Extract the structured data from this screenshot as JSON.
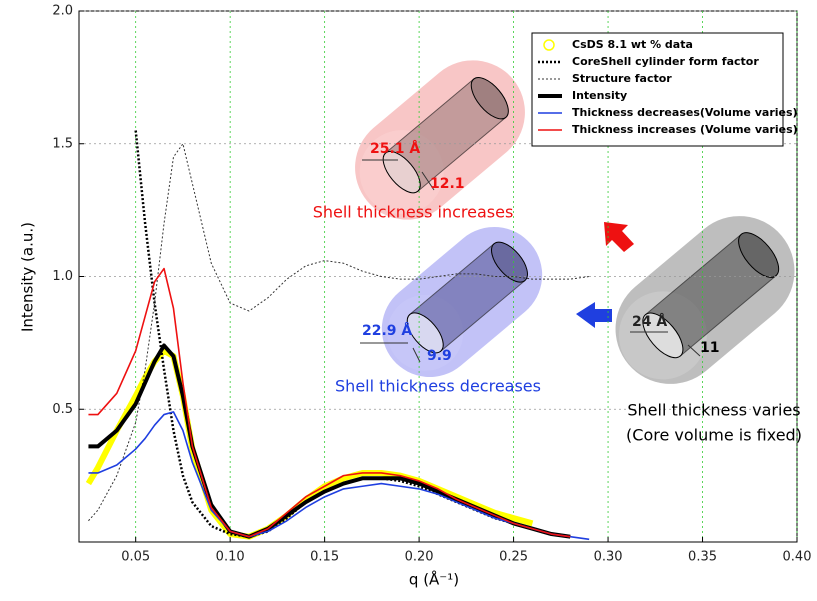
{
  "chart_data": {
    "type": "line",
    "x_label": "q (Å⁻¹)",
    "y_label": "Intensity (a.u.)",
    "xlim": [
      0.02,
      0.4
    ],
    "ylim": [
      0,
      2.0
    ],
    "xticks": [
      0.05,
      {
        "value": 0.1,
        "label": "0.10"
      },
      0.15,
      {
        "value": 0.2,
        "label": "0.20"
      },
      0.25,
      {
        "value": 0.3,
        "label": "0.30"
      },
      0.35,
      {
        "value": 0.4,
        "label": "0.40"
      }
    ],
    "yticks": [
      0.5,
      {
        "value": 1,
        "label": "1.0"
      },
      1.5,
      {
        "value": 2,
        "label": "2.0"
      }
    ],
    "grid": true,
    "legend": "top-right",
    "x": [
      0.025,
      0.03,
      0.04,
      0.05,
      0.055,
      0.06,
      0.065,
      0.07,
      0.075,
      0.08,
      0.09,
      0.1,
      0.11,
      0.12,
      0.13,
      0.14,
      0.15,
      0.16,
      0.17,
      0.18,
      0.19,
      0.2,
      0.21,
      0.22,
      0.23,
      0.24,
      0.25,
      0.26,
      0.27,
      0.28,
      0.29
    ],
    "series": [
      {
        "name": "CsDS 8.1 wt % data",
        "color": "#ffff00",
        "line_style": "solid",
        "line_width": 6,
        "values": [
          0.22,
          0.28,
          0.42,
          0.55,
          0.62,
          0.68,
          0.72,
          0.7,
          0.55,
          0.35,
          0.12,
          0.03,
          0.02,
          0.05,
          0.1,
          0.16,
          0.21,
          0.24,
          0.26,
          0.26,
          0.25,
          0.23,
          0.2,
          0.17,
          0.14,
          0.11,
          0.09,
          0.07,
          null,
          null,
          null
        ]
      },
      {
        "name": "CoreShell cylinder form factor",
        "color": "#000000",
        "line_style": "dotted",
        "line_width": 2.5,
        "values": [
          null,
          null,
          null,
          1.55,
          1.2,
          0.9,
          0.65,
          0.42,
          0.25,
          0.15,
          0.06,
          0.03,
          0.02,
          0.04,
          0.09,
          0.15,
          0.19,
          0.22,
          0.24,
          0.24,
          0.23,
          0.21,
          0.18,
          0.15,
          0.12,
          0.09,
          0.07,
          0.05,
          0.03,
          0.02,
          null
        ]
      },
      {
        "name": "Structure factor",
        "color": "#333333",
        "line_style": "dotted",
        "line_width": 1,
        "values": [
          0.08,
          0.12,
          0.25,
          0.45,
          0.65,
          0.9,
          1.2,
          1.45,
          1.5,
          1.35,
          1.05,
          0.9,
          0.87,
          0.92,
          0.99,
          1.04,
          1.06,
          1.05,
          1.02,
          1.0,
          0.99,
          0.99,
          1.0,
          1.01,
          1.01,
          1.0,
          1.0,
          0.99,
          0.99,
          0.99,
          1.0
        ]
      },
      {
        "name": "Intensity",
        "color": "#000000",
        "line_style": "solid",
        "line_width": 4,
        "values": [
          0.36,
          0.36,
          0.42,
          0.52,
          0.6,
          0.68,
          0.74,
          0.7,
          0.55,
          0.36,
          0.14,
          0.04,
          0.02,
          0.05,
          0.1,
          0.15,
          0.19,
          0.22,
          0.24,
          0.24,
          0.24,
          0.22,
          0.19,
          0.16,
          0.13,
          0.1,
          0.07,
          0.05,
          0.03,
          0.02,
          null
        ]
      },
      {
        "name": "Thickness decreases(Volume varies)",
        "color": "#1f3fe0",
        "line_style": "solid",
        "line_width": 1.6,
        "values": [
          0.26,
          0.26,
          0.29,
          0.35,
          0.39,
          0.44,
          0.48,
          0.49,
          0.42,
          0.3,
          0.12,
          0.04,
          0.02,
          0.04,
          0.08,
          0.13,
          0.17,
          0.2,
          0.21,
          0.22,
          0.21,
          0.2,
          0.18,
          0.15,
          0.12,
          0.09,
          0.07,
          0.05,
          0.03,
          0.02,
          0.01
        ]
      },
      {
        "name": "Thickness increases (Volume varies)",
        "color": "#ee1111",
        "line_style": "solid",
        "line_width": 1.6,
        "values": [
          0.48,
          0.48,
          0.56,
          0.72,
          0.85,
          0.98,
          1.03,
          0.88,
          0.6,
          0.36,
          0.13,
          0.04,
          0.02,
          0.05,
          0.11,
          0.17,
          0.21,
          0.25,
          0.26,
          0.26,
          0.25,
          0.23,
          0.2,
          0.16,
          0.13,
          0.1,
          0.07,
          0.05,
          0.03,
          0.02,
          null
        ]
      }
    ],
    "annotations": [
      "25.1 Å",
      "12.1",
      "Shell thickness increases",
      "22.9 Å",
      "9.9",
      "Shell thickness decreases",
      "24 Å",
      "11",
      "Shell thickness varies",
      "(Core volume is fixed)"
    ]
  }
}
